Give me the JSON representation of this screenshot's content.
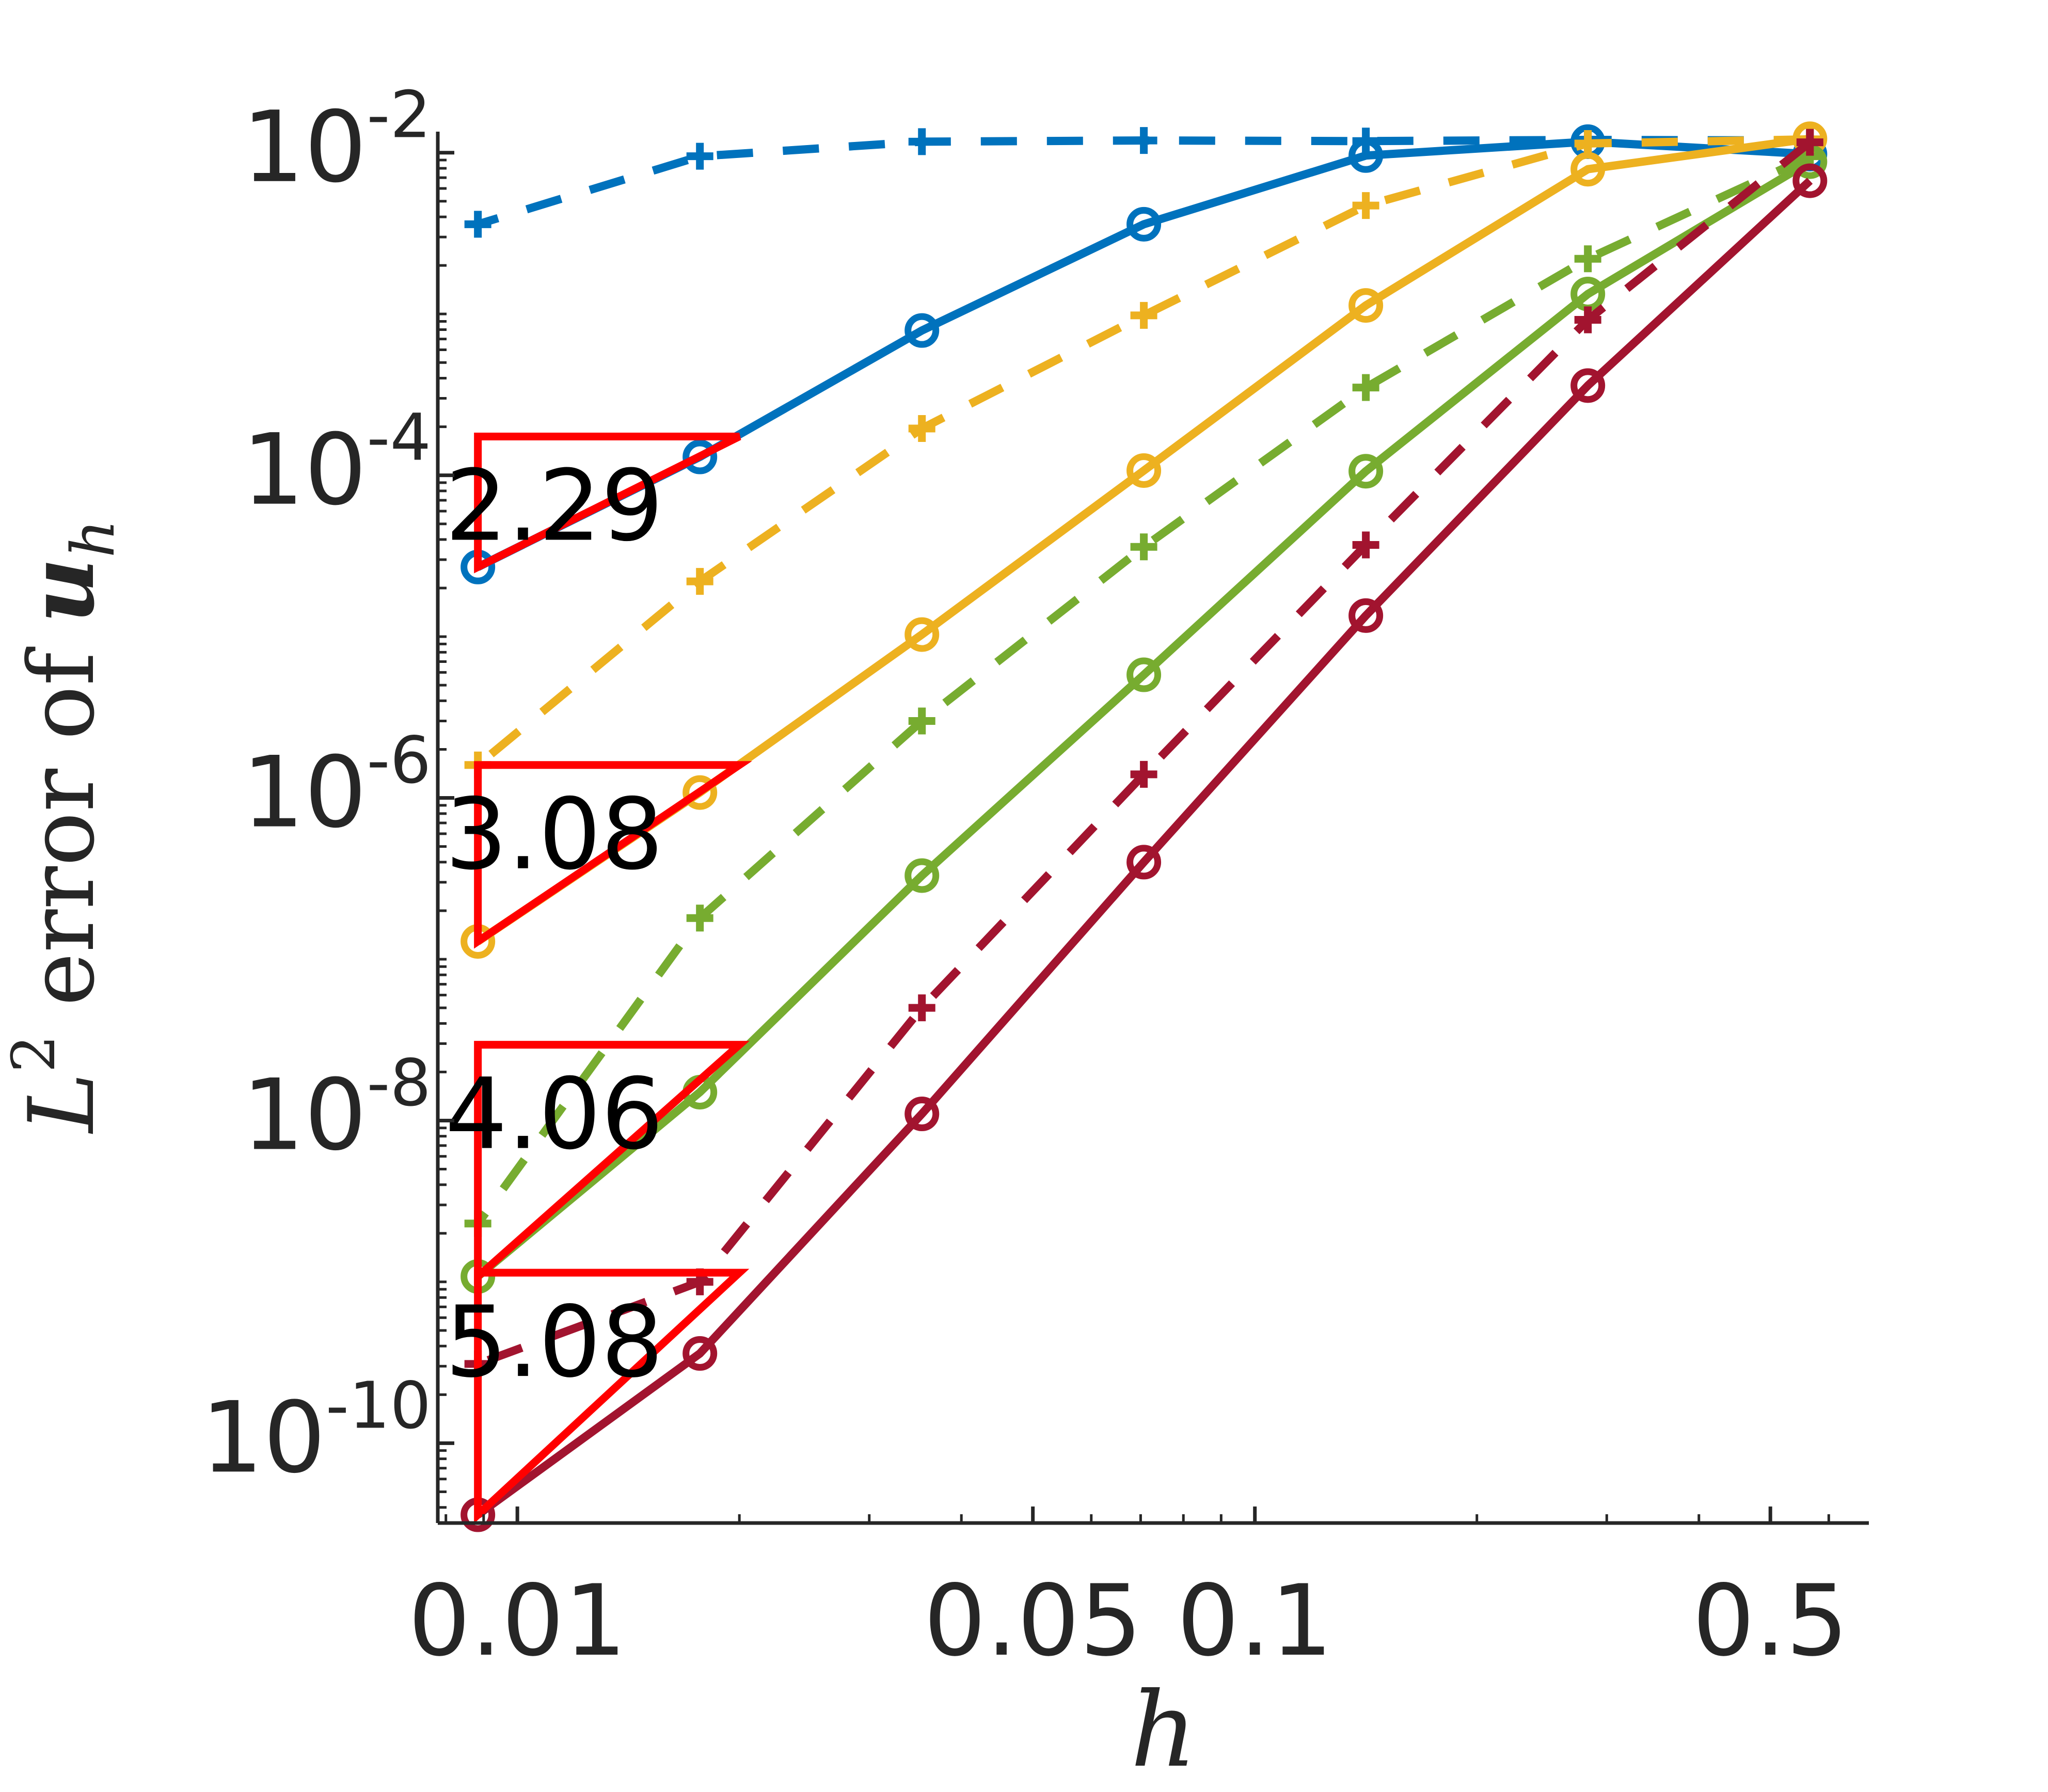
{
  "chart_data": {
    "type": "line",
    "xscale": "log",
    "yscale": "log",
    "xlim": [
      0.0078,
      0.68
    ],
    "ylim": [
      3.2e-11,
      0.0135
    ],
    "xticks": [
      0.01,
      0.05,
      0.1,
      0.5
    ],
    "xtick_labels": [
      "0.01",
      "0.05",
      "0.1",
      "0.5"
    ],
    "yticks": [
      0.01,
      0.0001,
      1e-06,
      1e-08,
      1e-10
    ],
    "ytick_labels": [
      {
        "base": "10",
        "exp": "-2"
      },
      {
        "base": "10",
        "exp": "-4"
      },
      {
        "base": "10",
        "exp": "-6"
      },
      {
        "base": "10",
        "exp": "-8"
      },
      {
        "base": "10",
        "exp": "-10"
      }
    ],
    "xlabel": "h",
    "ylabel": {
      "prefix": "L",
      "sup": "2",
      "middle": " error of ",
      "var": "u",
      "sub": "h"
    },
    "grid": false,
    "x": [
      0.5657,
      0.2828,
      0.1414,
      0.0707,
      0.03536,
      0.01768,
      0.00884
    ],
    "series": [
      {
        "color": "#0072BD",
        "linestyle": "solid",
        "marker": "circle",
        "values": [
          0.0098,
          0.0117,
          0.0096,
          0.0036,
          0.00079,
          0.00013,
          2.7e-05
        ]
      },
      {
        "color": "#0072BD",
        "linestyle": "dashed",
        "marker": "plus",
        "values": [
          0.0119,
          0.012,
          0.0118,
          0.0119,
          0.0117,
          0.0095,
          0.0036
        ]
      },
      {
        "color": "#EDB120",
        "linestyle": "solid",
        "marker": "circle",
        "values": [
          0.0122,
          0.0079,
          0.00113,
          0.000107,
          1.03e-05,
          1.08e-06,
          1.29e-07
        ]
      },
      {
        "color": "#EDB120",
        "linestyle": "dashed",
        "marker": "plus",
        "values": [
          0.0121,
          0.0114,
          0.0047,
          0.00098,
          0.000195,
          2.2e-05,
          1.6e-06
        ]
      },
      {
        "color": "#77AC30",
        "linestyle": "solid",
        "marker": "circle",
        "values": [
          0.0088,
          0.00133,
          0.000106,
          5.8e-06,
          3.3e-07,
          1.5e-08,
          1.08e-09
        ]
      },
      {
        "color": "#77AC30",
        "linestyle": "dashed",
        "marker": "plus",
        "values": [
          0.0095,
          0.0022,
          0.00035,
          3.6e-05,
          3e-06,
          1.8e-07,
          2.3e-09
        ]
      },
      {
        "color": "#A2142F",
        "linestyle": "solid",
        "marker": "circle",
        "values": [
          0.0067,
          0.00036,
          1.35e-05,
          4e-07,
          1.1e-08,
          3.6e-10,
          3.6e-11
        ]
      },
      {
        "color": "#A2142F",
        "linestyle": "dashed",
        "marker": "plus",
        "values": [
          0.0116,
          0.00092,
          3.7e-05,
          1.4e-06,
          5e-08,
          1e-09,
          3.1e-10
        ]
      }
    ],
    "slope_triangles": [
      {
        "label": "2.29",
        "x": [
          0.00884,
          0.02
        ],
        "y_base": 2.7e-05,
        "y_top": 0.000174
      },
      {
        "label": "3.08",
        "x": [
          0.00884,
          0.02
        ],
        "y_base": 1.29e-07,
        "y_top": 1.6e-06
      },
      {
        "label": "4.06",
        "x": [
          0.00884,
          0.02
        ],
        "y_base": 1.08e-09,
        "y_top": 2.95e-08
      },
      {
        "label": "5.08",
        "x": [
          0.00884,
          0.02
        ],
        "y_base": 3.6e-11,
        "y_top": 1.14e-09
      }
    ],
    "triangle_color": "#FF0000"
  }
}
